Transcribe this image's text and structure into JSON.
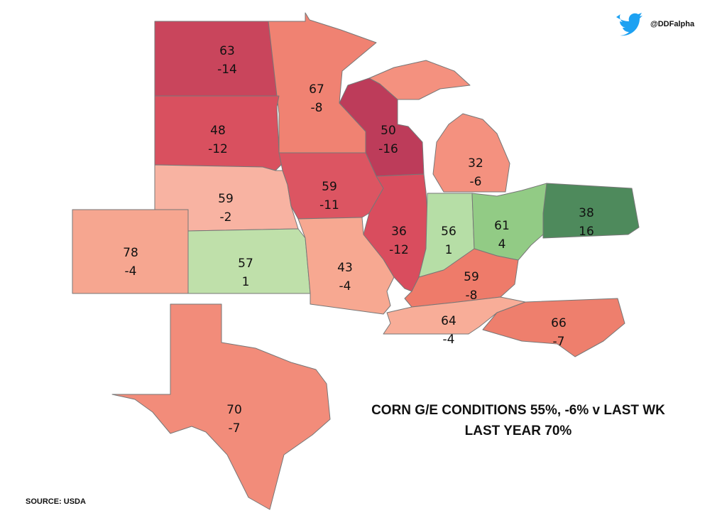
{
  "header": {
    "handle": "@DDFalpha"
  },
  "regions": [
    {
      "value": 63,
      "change": -14,
      "color": "#c9455c"
    },
    {
      "value": 67,
      "change": -8,
      "color": "#f08272"
    },
    {
      "value": 50,
      "change": -16,
      "color": "#bd3c5a"
    },
    {
      "value": 48,
      "change": -12,
      "color": "#d9505f"
    },
    {
      "value": 32,
      "change": -6,
      "color": "#f4917f"
    },
    {
      "value": 59,
      "change": -2,
      "color": "#f8b3a2"
    },
    {
      "value": 59,
      "change": -11,
      "color": "#dc5562"
    },
    {
      "value": 78,
      "change": -4,
      "color": "#f6a690"
    },
    {
      "value": 57,
      "change": 1,
      "color": "#bfe0aa"
    },
    {
      "value": 43,
      "change": -4,
      "color": "#f7a891"
    },
    {
      "value": 36,
      "change": -12,
      "color": "#d94d5e"
    },
    {
      "value": 56,
      "change": 1,
      "color": "#b6dea6"
    },
    {
      "value": 61,
      "change": 4,
      "color": "#92cb85"
    },
    {
      "value": 38,
      "change": 16,
      "color": "#4e8a5c"
    },
    {
      "value": 59,
      "change": -8,
      "color": "#ee7b6a"
    },
    {
      "value": 64,
      "change": -4,
      "color": "#f8ad98"
    },
    {
      "value": 66,
      "change": -7,
      "color": "#ee7f6d"
    },
    {
      "value": 70,
      "change": -7,
      "color": "#f28c7a"
    }
  ],
  "title": [
    "CORN G/E CONDITIONS 55%, -6% v LAST WK",
    "LAST YEAR 70%"
  ],
  "source": "SOURCE: USDA"
}
